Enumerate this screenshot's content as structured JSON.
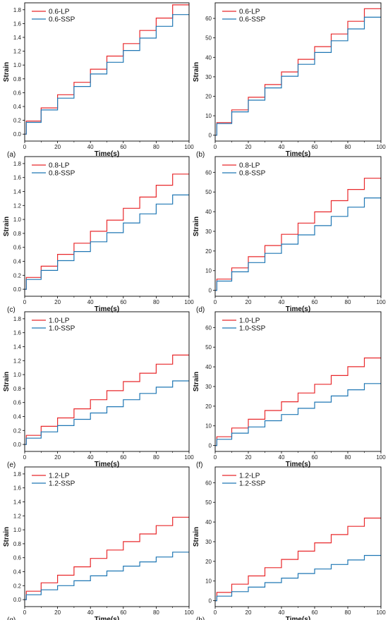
{
  "colors": {
    "lp": "#e8282b",
    "ssp": "#1f77b4",
    "axis": "#000000"
  },
  "chart_data": [
    {
      "type": "line",
      "panel_label": "(a)",
      "xlabel": "Time(s)",
      "ylabel": "Strain",
      "xlim": [
        0,
        100
      ],
      "ylim": [
        -0.1,
        1.9
      ],
      "xticks": [
        "0",
        "20",
        "40",
        "60",
        "80",
        "100"
      ],
      "yticks": [
        "0.0",
        "0.2",
        "0.4",
        "0.6",
        "0.8",
        "1.0",
        "1.2",
        "1.4",
        "1.6",
        "1.8"
      ],
      "legend_position": "top-left",
      "series": [
        {
          "name": "0.6-LP",
          "color": "#e8282b",
          "x": [
            0,
            1,
            10,
            20,
            30,
            40,
            50,
            60,
            70,
            80,
            90,
            100
          ],
          "y": [
            0,
            0.19,
            0.38,
            0.57,
            0.75,
            0.94,
            1.13,
            1.31,
            1.5,
            1.68,
            1.87,
            1.87
          ]
        },
        {
          "name": "0.6-SSP",
          "color": "#1f77b4",
          "x": [
            0,
            1,
            10,
            20,
            30,
            40,
            50,
            60,
            70,
            80,
            90,
            100
          ],
          "y": [
            0,
            0.17,
            0.35,
            0.52,
            0.69,
            0.87,
            1.04,
            1.21,
            1.39,
            1.56,
            1.73,
            1.73
          ]
        }
      ]
    },
    {
      "type": "line",
      "panel_label": "(b)",
      "xlabel": "Time(s)",
      "ylabel": "Strain",
      "xlim": [
        0,
        100
      ],
      "ylim": [
        -3,
        68
      ],
      "xticks": [
        "0",
        "20",
        "40",
        "60",
        "80",
        "100"
      ],
      "yticks": [
        "0",
        "10",
        "20",
        "30",
        "40",
        "50",
        "60"
      ],
      "legend_position": "top-left",
      "series": [
        {
          "name": "0.6-LP",
          "color": "#e8282b",
          "x": [
            0,
            1,
            10,
            20,
            30,
            40,
            50,
            60,
            70,
            80,
            90,
            100
          ],
          "y": [
            0,
            6.5,
            13,
            19.5,
            26,
            32.5,
            39,
            45.5,
            52,
            58.5,
            65,
            65
          ]
        },
        {
          "name": "0.6-SSP",
          "color": "#1f77b4",
          "x": [
            0,
            1,
            10,
            20,
            30,
            40,
            50,
            60,
            70,
            80,
            90,
            100
          ],
          "y": [
            0,
            6,
            12,
            18,
            24.3,
            30.3,
            36.4,
            42.5,
            48.5,
            54.6,
            60.6,
            60.6
          ]
        }
      ]
    },
    {
      "type": "line",
      "panel_label": "(c)",
      "xlabel": "Time(s)",
      "ylabel": "Strain",
      "xlim": [
        0,
        100
      ],
      "ylim": [
        -0.1,
        1.9
      ],
      "xticks": [
        "0",
        "20",
        "40",
        "60",
        "80",
        "100"
      ],
      "yticks": [
        "0.0",
        "0.2",
        "0.4",
        "0.6",
        "0.8",
        "1.0",
        "1.2",
        "1.4",
        "1.6",
        "1.8"
      ],
      "legend_position": "top-left",
      "series": [
        {
          "name": "0.8-LP",
          "color": "#e8282b",
          "x": [
            0,
            1,
            10,
            20,
            30,
            40,
            50,
            60,
            70,
            80,
            90,
            100
          ],
          "y": [
            0,
            0.17,
            0.33,
            0.5,
            0.66,
            0.83,
            0.99,
            1.16,
            1.32,
            1.49,
            1.65,
            1.65
          ]
        },
        {
          "name": "0.8-SSP",
          "color": "#1f77b4",
          "x": [
            0,
            1,
            10,
            20,
            30,
            40,
            50,
            60,
            70,
            80,
            90,
            100
          ],
          "y": [
            0,
            0.14,
            0.27,
            0.41,
            0.54,
            0.68,
            0.81,
            0.95,
            1.08,
            1.22,
            1.35,
            1.35
          ]
        }
      ]
    },
    {
      "type": "line",
      "panel_label": "(d)",
      "xlabel": "Time(s)",
      "ylabel": "Strain",
      "xlim": [
        0,
        100
      ],
      "ylim": [
        -3,
        68
      ],
      "xticks": [
        "0",
        "20",
        "40",
        "60",
        "80",
        "100"
      ],
      "yticks": [
        "0",
        "10",
        "20",
        "30",
        "40",
        "50",
        "60"
      ],
      "legend_position": "top-left",
      "series": [
        {
          "name": "0.8-LP",
          "color": "#e8282b",
          "x": [
            0,
            1,
            10,
            20,
            30,
            40,
            50,
            60,
            70,
            80,
            90,
            100
          ],
          "y": [
            0,
            5.7,
            11.4,
            17.1,
            22.8,
            28.5,
            34.2,
            39.9,
            45.6,
            51.3,
            57,
            57
          ]
        },
        {
          "name": "0.8-SSP",
          "color": "#1f77b4",
          "x": [
            0,
            1,
            10,
            20,
            30,
            40,
            50,
            60,
            70,
            80,
            90,
            100
          ],
          "y": [
            0,
            4.7,
            9.4,
            14.1,
            18.8,
            23.5,
            28.2,
            32.9,
            37.6,
            42.3,
            47,
            47
          ]
        }
      ]
    },
    {
      "type": "line",
      "panel_label": "(e)",
      "xlabel": "Time(s)",
      "ylabel": "Strain",
      "xlim": [
        0,
        100
      ],
      "ylim": [
        -0.1,
        1.9
      ],
      "xticks": [
        "0",
        "20",
        "40",
        "60",
        "80",
        "100"
      ],
      "yticks": [
        "0.0",
        "0.2",
        "0.4",
        "0.6",
        "0.8",
        "1.0",
        "1.2",
        "1.4",
        "1.6",
        "1.8"
      ],
      "legend_position": "top-left",
      "series": [
        {
          "name": "1.0-LP",
          "color": "#e8282b",
          "x": [
            0,
            1,
            10,
            20,
            30,
            40,
            50,
            60,
            70,
            80,
            90,
            100
          ],
          "y": [
            0,
            0.13,
            0.26,
            0.38,
            0.51,
            0.64,
            0.77,
            0.9,
            1.02,
            1.15,
            1.28,
            1.28
          ]
        },
        {
          "name": "1.0-SSP",
          "color": "#1f77b4",
          "x": [
            0,
            1,
            10,
            20,
            30,
            40,
            50,
            60,
            70,
            80,
            90,
            100
          ],
          "y": [
            0,
            0.09,
            0.18,
            0.27,
            0.36,
            0.45,
            0.54,
            0.64,
            0.73,
            0.82,
            0.91,
            0.91
          ]
        }
      ]
    },
    {
      "type": "line",
      "panel_label": "(f)",
      "xlabel": "Time(s)",
      "ylabel": "Strain",
      "xlim": [
        0,
        100
      ],
      "ylim": [
        -3,
        68
      ],
      "xticks": [
        "0",
        "20",
        "40",
        "60",
        "80",
        "100"
      ],
      "yticks": [
        "0",
        "10",
        "20",
        "30",
        "40",
        "50",
        "60"
      ],
      "legend_position": "top-left",
      "series": [
        {
          "name": "1.0-LP",
          "color": "#e8282b",
          "x": [
            0,
            1,
            10,
            20,
            30,
            40,
            50,
            60,
            70,
            80,
            90,
            100
          ],
          "y": [
            0,
            4.45,
            8.9,
            13.35,
            17.8,
            22.25,
            26.7,
            31.15,
            35.6,
            40.05,
            44.5,
            44.5
          ]
        },
        {
          "name": "1.0-SSP",
          "color": "#1f77b4",
          "x": [
            0,
            1,
            10,
            20,
            30,
            40,
            50,
            60,
            70,
            80,
            90,
            100
          ],
          "y": [
            0,
            3.15,
            6.3,
            9.45,
            12.6,
            15.75,
            18.9,
            22.05,
            25.2,
            28.35,
            31.5,
            31.5
          ]
        }
      ]
    },
    {
      "type": "line",
      "panel_label": "(g)",
      "xlabel": "Time(s)",
      "ylabel": "Strain",
      "xlim": [
        0,
        100
      ],
      "ylim": [
        -0.1,
        1.9
      ],
      "xticks": [
        "0",
        "20",
        "40",
        "60",
        "80",
        "100"
      ],
      "yticks": [
        "0.0",
        "0.2",
        "0.4",
        "0.6",
        "0.8",
        "1.0",
        "1.2",
        "1.4",
        "1.6",
        "1.8"
      ],
      "legend_position": "top-left",
      "series": [
        {
          "name": "1.2-LP",
          "color": "#e8282b",
          "x": [
            0,
            1,
            10,
            20,
            30,
            40,
            50,
            60,
            70,
            80,
            90,
            100
          ],
          "y": [
            0,
            0.12,
            0.24,
            0.35,
            0.47,
            0.59,
            0.71,
            0.83,
            0.94,
            1.06,
            1.18,
            1.18
          ]
        },
        {
          "name": "1.2-SSP",
          "color": "#1f77b4",
          "x": [
            0,
            1,
            10,
            20,
            30,
            40,
            50,
            60,
            70,
            80,
            90,
            100
          ],
          "y": [
            0,
            0.07,
            0.14,
            0.2,
            0.27,
            0.34,
            0.41,
            0.48,
            0.54,
            0.61,
            0.68,
            0.68
          ]
        }
      ]
    },
    {
      "type": "line",
      "panel_label": "(h)",
      "xlabel": "Time(s)",
      "ylabel": "Strain",
      "xlim": [
        0,
        100
      ],
      "ylim": [
        -3,
        68
      ],
      "xticks": [
        "0",
        "20",
        "40",
        "60",
        "80",
        "100"
      ],
      "yticks": [
        "0",
        "10",
        "20",
        "30",
        "40",
        "50",
        "60"
      ],
      "legend_position": "top-left",
      "series": [
        {
          "name": "1.2-LP",
          "color": "#e8282b",
          "x": [
            0,
            1,
            10,
            20,
            30,
            40,
            50,
            60,
            70,
            80,
            90,
            100
          ],
          "y": [
            0,
            4.2,
            8.4,
            12.6,
            16.8,
            21,
            25.2,
            29.4,
            33.6,
            37.8,
            42,
            42
          ]
        },
        {
          "name": "1.2-SSP",
          "color": "#1f77b4",
          "x": [
            0,
            1,
            10,
            20,
            30,
            40,
            50,
            60,
            70,
            80,
            90,
            100
          ],
          "y": [
            0,
            2.3,
            4.6,
            6.9,
            9.2,
            11.5,
            13.8,
            16.1,
            18.4,
            20.7,
            23,
            23
          ]
        }
      ]
    }
  ]
}
